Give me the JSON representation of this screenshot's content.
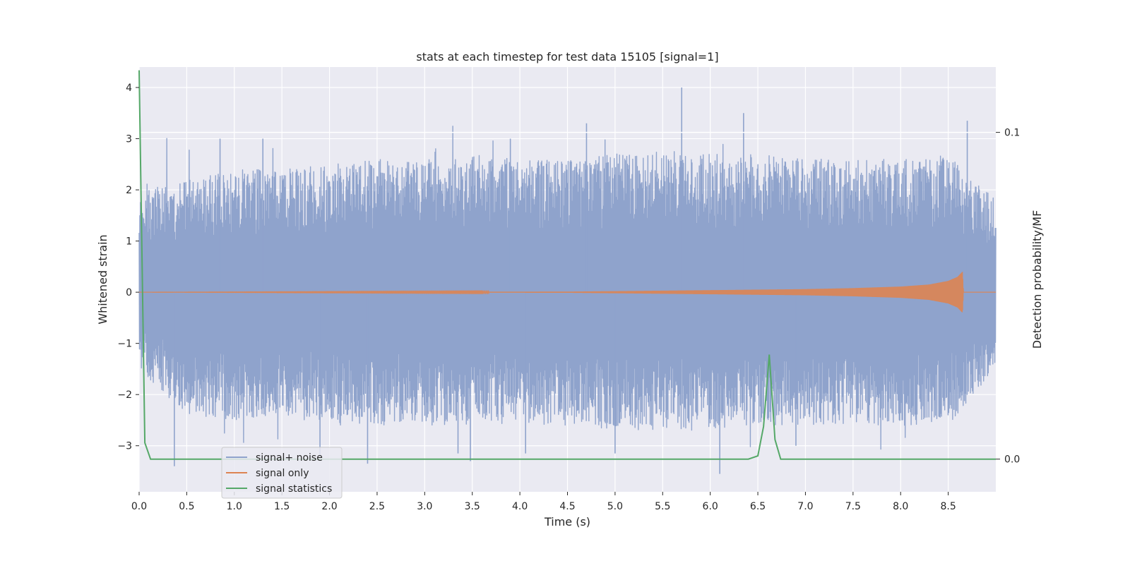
{
  "chart_data": {
    "type": "line",
    "title": "stats at each timestep for test data 15105 [signal=1]",
    "xlabel": "Time (s)",
    "ylabel_left": "Whitened strain",
    "ylabel_right": "Detection probability/MF",
    "xlim": [
      0.0,
      9.0
    ],
    "ylim_left": [
      -3.9,
      4.4
    ],
    "ylim_right": [
      -0.01,
      0.12
    ],
    "x_ticks": [
      "0.0",
      "0.5",
      "1.0",
      "1.5",
      "2.0",
      "2.5",
      "3.0",
      "3.5",
      "4.0",
      "4.5",
      "5.0",
      "5.5",
      "6.0",
      "6.5",
      "7.0",
      "7.5",
      "8.0",
      "8.5"
    ],
    "y_ticks_left": [
      "4",
      "3",
      "2",
      "1",
      "0",
      "−1",
      "−2",
      "−3"
    ],
    "y_ticks_right": [
      "0.1",
      "0.0"
    ],
    "grid": true,
    "legend_position": "lower-left",
    "colors": {
      "plot_background": "#eaeaf2",
      "grid": "#ffffff",
      "signal_noise": "#8fa3cc",
      "signal_only": "#dd8452",
      "signal_statistics": "#55a868"
    },
    "series": [
      {
        "name": "signal+ noise",
        "axis": "left",
        "description_values": {
          "envelope_upper": [
            [
              0.0,
              2.0
            ],
            [
              0.5,
              2.2
            ],
            [
              1.0,
              2.4
            ],
            [
              1.5,
              2.4
            ],
            [
              2.0,
              2.5
            ],
            [
              2.5,
              2.6
            ],
            [
              3.0,
              2.6
            ],
            [
              3.5,
              2.7
            ],
            [
              4.0,
              2.6
            ],
            [
              4.5,
              2.6
            ],
            [
              5.0,
              2.7
            ],
            [
              5.5,
              2.8
            ],
            [
              6.0,
              2.7
            ],
            [
              6.5,
              2.7
            ],
            [
              7.0,
              2.6
            ],
            [
              7.5,
              2.6
            ],
            [
              8.0,
              2.6
            ],
            [
              8.5,
              2.7
            ],
            [
              9.0,
              1.8
            ]
          ],
          "envelope_lower": [
            [
              0.0,
              -1.5
            ],
            [
              0.5,
              -2.4
            ],
            [
              1.0,
              -2.5
            ],
            [
              1.5,
              -2.4
            ],
            [
              2.0,
              -2.6
            ],
            [
              2.5,
              -2.6
            ],
            [
              3.0,
              -2.6
            ],
            [
              3.5,
              -2.6
            ],
            [
              4.0,
              -2.6
            ],
            [
              4.5,
              -2.6
            ],
            [
              5.0,
              -2.7
            ],
            [
              5.5,
              -2.7
            ],
            [
              6.0,
              -2.7
            ],
            [
              6.5,
              -2.6
            ],
            [
              7.0,
              -2.6
            ],
            [
              7.5,
              -2.6
            ],
            [
              8.0,
              -2.6
            ],
            [
              8.5,
              -2.6
            ],
            [
              9.0,
              -1.5
            ]
          ],
          "peaks": [
            [
              0.37,
              -3.4
            ],
            [
              0.85,
              3.0
            ],
            [
              1.3,
              3.0
            ],
            [
              1.9,
              -3.2
            ],
            [
              2.4,
              -3.35
            ],
            [
              3.35,
              -3.15
            ],
            [
              3.48,
              -3.3
            ],
            [
              3.9,
              3.0
            ],
            [
              4.06,
              -3.15
            ],
            [
              4.7,
              3.3
            ],
            [
              5.0,
              -3.15
            ],
            [
              5.7,
              4.0
            ],
            [
              6.1,
              -3.55
            ],
            [
              6.35,
              3.5
            ],
            [
              6.9,
              -3.0
            ],
            [
              8.7,
              3.35
            ]
          ]
        }
      },
      {
        "name": "signal only",
        "axis": "left",
        "values": [
          [
            0.0,
            0.0
          ],
          [
            4.5,
            0.01
          ],
          [
            5.0,
            0.02
          ],
          [
            5.5,
            0.03
          ],
          [
            6.0,
            0.04
          ],
          [
            6.5,
            0.05
          ],
          [
            7.0,
            0.06
          ],
          [
            7.5,
            0.08
          ],
          [
            8.0,
            0.11
          ],
          [
            8.3,
            0.15
          ],
          [
            8.5,
            0.22
          ],
          [
            8.6,
            0.3
          ],
          [
            8.65,
            0.4
          ],
          [
            8.66,
            0.0
          ],
          [
            9.0,
            0.0
          ]
        ]
      },
      {
        "name": "signal statistics",
        "axis": "right",
        "values": [
          [
            0.0,
            0.119
          ],
          [
            0.06,
            0.005
          ],
          [
            0.12,
            0.0
          ],
          [
            6.4,
            0.0
          ],
          [
            6.5,
            0.001
          ],
          [
            6.56,
            0.01
          ],
          [
            6.62,
            0.032
          ],
          [
            6.68,
            0.006
          ],
          [
            6.74,
            0.0
          ],
          [
            9.0,
            0.0
          ]
        ]
      }
    ],
    "horizontal_lines": [
      {
        "axis": "right",
        "value": 0.1,
        "color": "#ffffff"
      }
    ]
  }
}
